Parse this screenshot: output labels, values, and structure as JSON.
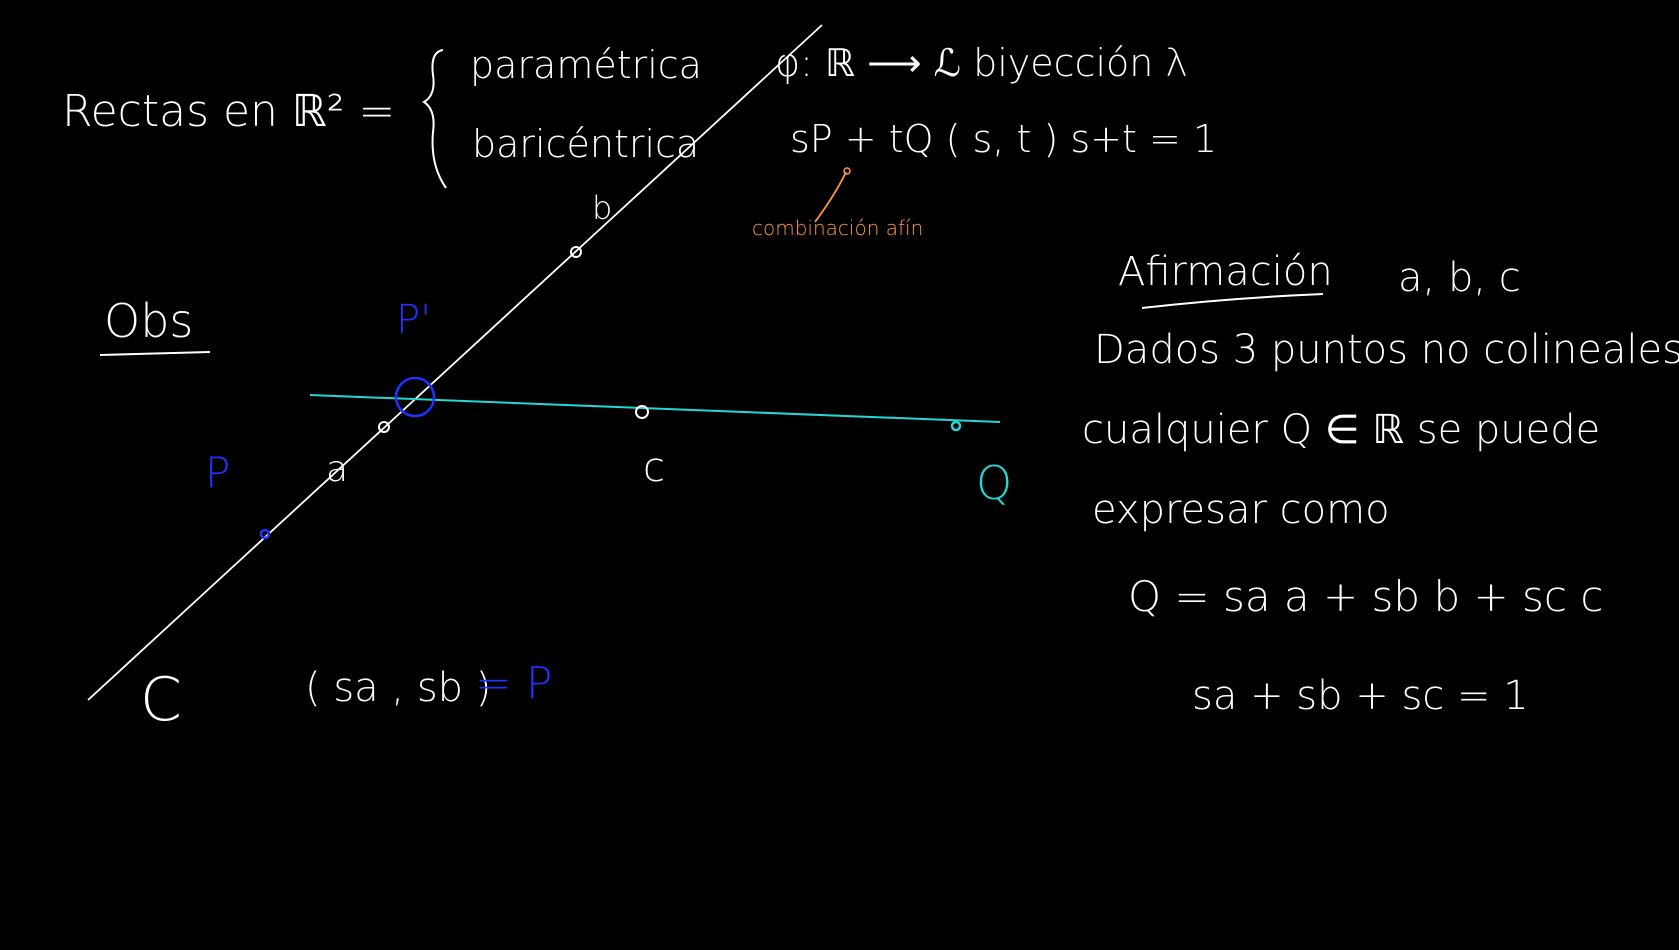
{
  "colors": {
    "background": "#000000",
    "ink": "#ffffff",
    "blue": "#1f33ff",
    "cyan": "#26d6d6",
    "orange": "#ff9a3c"
  },
  "header": {
    "rectas_label": "Rectas en ℝ² =",
    "parametrica": "paramétrica",
    "baricentrica": "baricéntrica",
    "bijection": "φ: ℝ ⟶ ℒ  biyección  λ",
    "affine_expr": "sP + tQ  ( s, t )   s+t = 1",
    "affine_note": "combinación afín"
  },
  "obs": {
    "title": "Obs"
  },
  "diagram": {
    "label_b": "b",
    "label_p_prime": "P'",
    "label_p": "P",
    "label_a": "a",
    "label_c_lower": "c",
    "label_q": "Q",
    "label_c_upper": "C",
    "coords_text": "( sa , sb )",
    "coords_eq": "= P"
  },
  "claim": {
    "title": "Afirmación",
    "points": "a, b, c",
    "line1": "Dados 3 puntos no colineales",
    "line2": "cualquier Q ∈ ℝ se puede",
    "line3": "expresar como",
    "formula": "Q = sa a + sb b + sc c",
    "constraint": "sa + sb + sc = 1"
  }
}
